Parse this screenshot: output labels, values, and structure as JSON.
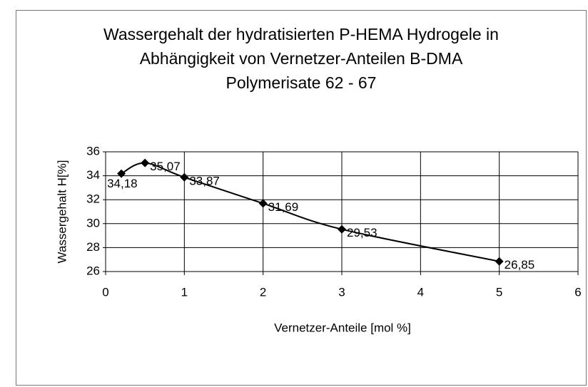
{
  "chart_data": {
    "type": "line",
    "title": [
      "Wassergehalt der hydratisierten P-HEMA Hydrogele in",
      "Abhängigkeit von Vernetzer-Anteilen B-DMA",
      "Polymerisate 62 - 67"
    ],
    "x_label": "Vernetzer-Anteile [mol %]",
    "y_label": "Wassergehalt H[%]",
    "x": [
      0.2,
      0.5,
      1,
      2,
      3,
      5
    ],
    "series": [
      {
        "name": "Wassergehalt",
        "color": "#000000",
        "values": [
          34.18,
          35.07,
          33.87,
          31.69,
          29.53,
          26.85
        ],
        "value_labels": [
          "34,18",
          "35,07",
          "33,87",
          "31,69",
          "29,53",
          "26,85"
        ]
      }
    ],
    "xlim": [
      0,
      6
    ],
    "xticks": [
      0,
      1,
      2,
      3,
      4,
      5,
      6
    ],
    "ylim": [
      26,
      36
    ],
    "yticks": [
      26,
      28,
      30,
      32,
      34,
      36
    ],
    "grid": true,
    "smooth": true
  }
}
